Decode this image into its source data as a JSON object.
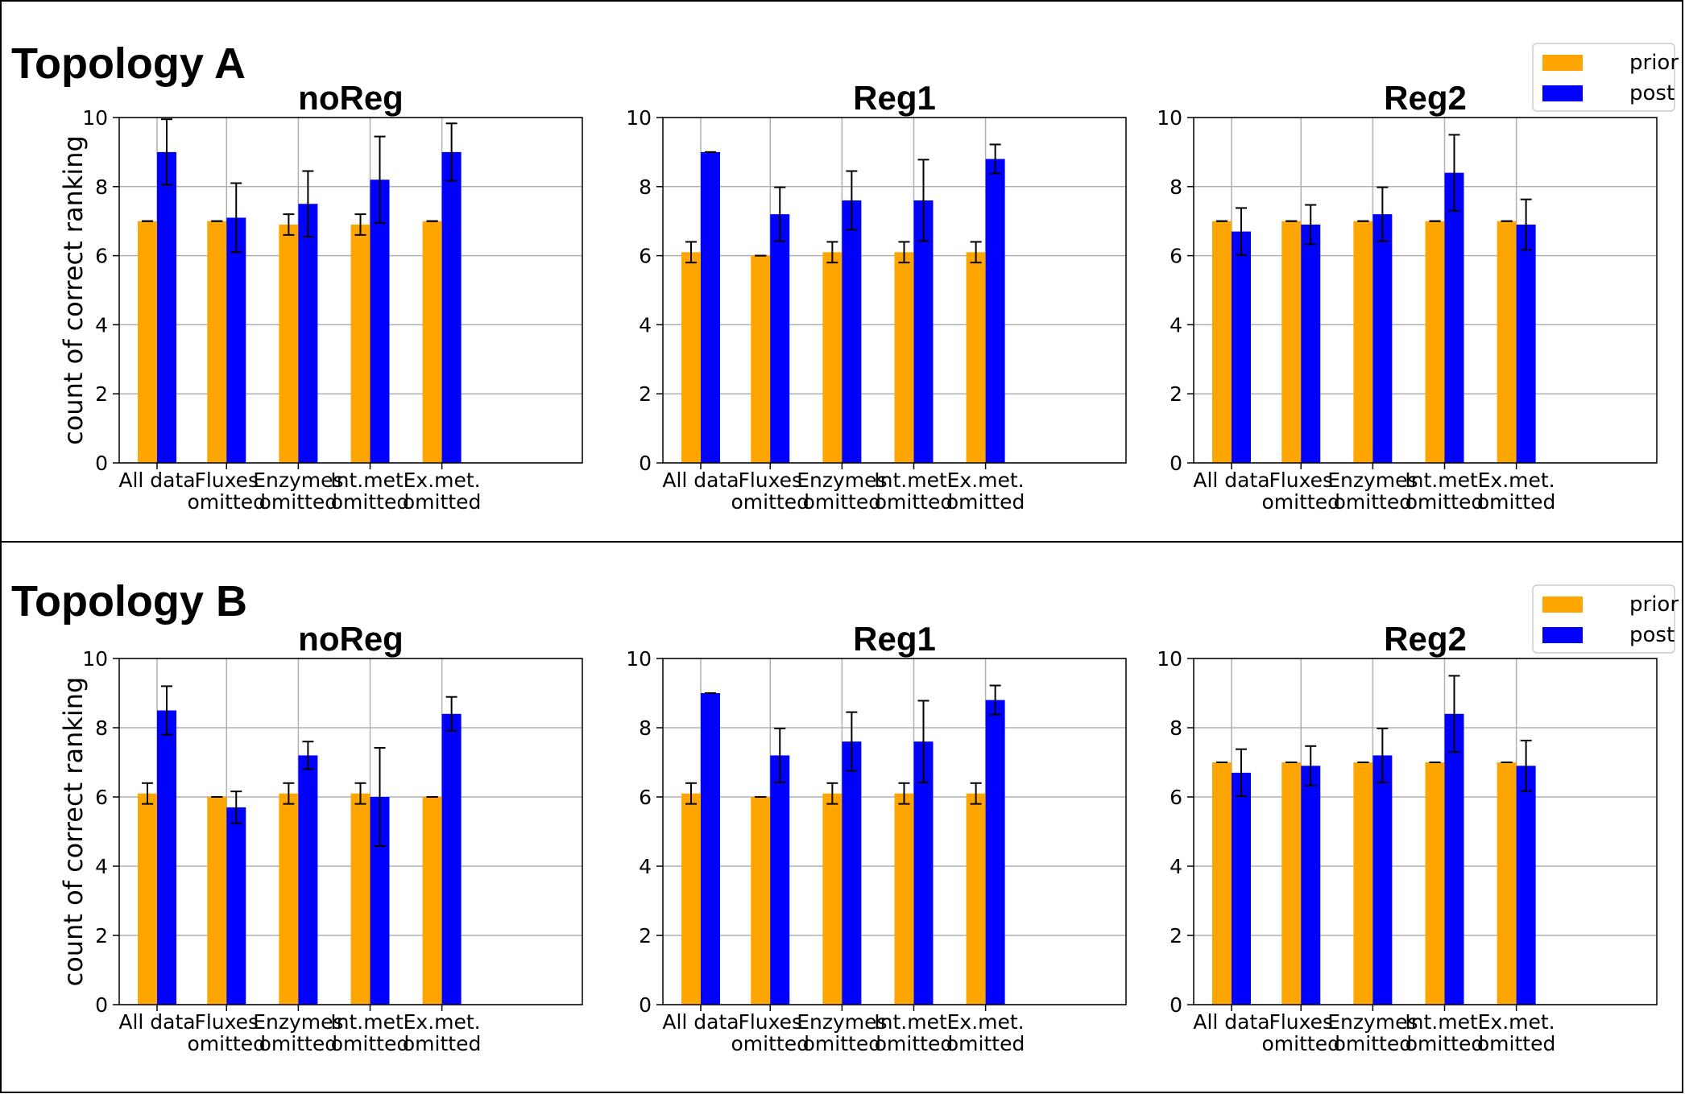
{
  "series_colors": {
    "prior": "#FFA500",
    "post": "#0000FF"
  },
  "panels": [
    {
      "title": "Topology A",
      "legend": [
        "prior",
        "post"
      ]
    },
    {
      "title": "Topology B",
      "legend": [
        "prior",
        "post"
      ]
    }
  ],
  "chart_data": [
    {
      "panel": "Topology A",
      "type": "bar",
      "title": "noReg",
      "ylabel": "count of correct ranking",
      "categories": [
        "All data",
        "Fluxes\nomitted",
        "Enzymes\nomitted",
        "Int.met.\nomitted",
        "Ex.met.\nomitted"
      ],
      "ylim": [
        0,
        10
      ],
      "yticks": [
        0,
        2,
        4,
        6,
        8,
        10
      ],
      "grid": true,
      "series": [
        {
          "name": "prior",
          "values": [
            7.0,
            7.0,
            6.9,
            6.9,
            7.0
          ],
          "errors": [
            0,
            0,
            0.3,
            0.3,
            0
          ]
        },
        {
          "name": "post",
          "values": [
            9.0,
            7.1,
            7.5,
            8.2,
            9.0
          ],
          "errors": [
            0.95,
            1.0,
            0.95,
            1.25,
            0.83
          ]
        }
      ]
    },
    {
      "panel": "Topology A",
      "type": "bar",
      "title": "Reg1",
      "ylabel": "",
      "categories": [
        "All data",
        "Fluxes\nomitted",
        "Enzymes\nomitted",
        "Int.met.\nomitted",
        "Ex.met.\nomitted"
      ],
      "ylim": [
        0,
        10
      ],
      "yticks": [
        0,
        2,
        4,
        6,
        8,
        10
      ],
      "grid": true,
      "series": [
        {
          "name": "prior",
          "values": [
            6.1,
            6.0,
            6.1,
            6.1,
            6.1
          ],
          "errors": [
            0.3,
            0,
            0.3,
            0.3,
            0.3
          ]
        },
        {
          "name": "post",
          "values": [
            9.0,
            7.2,
            7.6,
            7.6,
            8.8
          ],
          "errors": [
            0,
            0.78,
            0.85,
            1.18,
            0.42
          ]
        }
      ]
    },
    {
      "panel": "Topology A",
      "type": "bar",
      "title": "Reg2",
      "ylabel": "",
      "categories": [
        "All data",
        "Fluxes\nomitted",
        "Enzymes\nomitted",
        "Int.met.\nomitted",
        "Ex.met.\nomitted"
      ],
      "ylim": [
        0,
        10
      ],
      "yticks": [
        0,
        2,
        4,
        6,
        8,
        10
      ],
      "grid": true,
      "series": [
        {
          "name": "prior",
          "values": [
            7.0,
            7.0,
            7.0,
            7.0,
            7.0
          ],
          "errors": [
            0,
            0,
            0,
            0,
            0
          ]
        },
        {
          "name": "post",
          "values": [
            6.7,
            6.9,
            7.2,
            8.4,
            6.9
          ],
          "errors": [
            0.68,
            0.57,
            0.78,
            1.1,
            0.73
          ]
        }
      ]
    },
    {
      "panel": "Topology B",
      "type": "bar",
      "title": "noReg",
      "ylabel": "count of correct ranking",
      "categories": [
        "All data",
        "Fluxes\nomitted",
        "Enzymes\nomitted",
        "Int.met.\nomitted",
        "Ex.met.\nomitted"
      ],
      "ylim": [
        0,
        10
      ],
      "yticks": [
        0,
        2,
        4,
        6,
        8,
        10
      ],
      "grid": true,
      "series": [
        {
          "name": "prior",
          "values": [
            6.1,
            6.0,
            6.1,
            6.1,
            6.0
          ],
          "errors": [
            0.3,
            0,
            0.3,
            0.3,
            0
          ]
        },
        {
          "name": "post",
          "values": [
            8.5,
            5.7,
            7.2,
            6.0,
            8.4
          ],
          "errors": [
            0.7,
            0.46,
            0.4,
            1.42,
            0.49
          ]
        }
      ]
    },
    {
      "panel": "Topology B",
      "type": "bar",
      "title": "Reg1",
      "ylabel": "",
      "categories": [
        "All data",
        "Fluxes\nomitted",
        "Enzymes\nomitted",
        "Int.met.\nomitted",
        "Ex.met.\nomitted"
      ],
      "ylim": [
        0,
        10
      ],
      "yticks": [
        0,
        2,
        4,
        6,
        8,
        10
      ],
      "grid": true,
      "series": [
        {
          "name": "prior",
          "values": [
            6.1,
            6.0,
            6.1,
            6.1,
            6.1
          ],
          "errors": [
            0.3,
            0,
            0.3,
            0.3,
            0.3
          ]
        },
        {
          "name": "post",
          "values": [
            9.0,
            7.2,
            7.6,
            7.6,
            8.8
          ],
          "errors": [
            0,
            0.78,
            0.85,
            1.18,
            0.42
          ]
        }
      ]
    },
    {
      "panel": "Topology B",
      "type": "bar",
      "title": "Reg2",
      "ylabel": "",
      "categories": [
        "All data",
        "Fluxes\nomitted",
        "Enzymes\nomitted",
        "Int.met.\nomitted",
        "Ex.met.\nomitted"
      ],
      "ylim": [
        0,
        10
      ],
      "yticks": [
        0,
        2,
        4,
        6,
        8,
        10
      ],
      "grid": true,
      "series": [
        {
          "name": "prior",
          "values": [
            7.0,
            7.0,
            7.0,
            7.0,
            7.0
          ],
          "errors": [
            0,
            0,
            0,
            0,
            0
          ]
        },
        {
          "name": "post",
          "values": [
            6.7,
            6.9,
            7.2,
            8.4,
            6.9
          ],
          "errors": [
            0.68,
            0.57,
            0.78,
            1.1,
            0.73
          ]
        }
      ]
    }
  ]
}
